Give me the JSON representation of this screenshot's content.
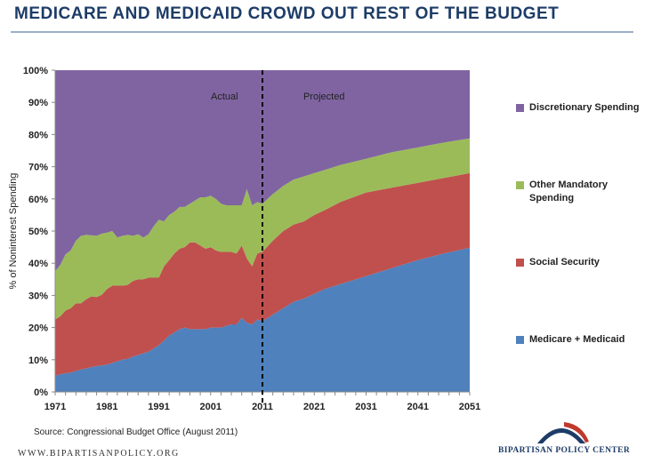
{
  "page": {
    "title": "MEDICARE AND MEDICAID CROWD OUT REST OF THE BUDGET",
    "source": "Source: Congressional Budget Office (August 2011)",
    "footer_url": "WWW.BIPARTISANPOLICY.ORG",
    "logo_text": "BIPARTISAN POLICY CENTER"
  },
  "colors": {
    "medicare": "#4f81bd",
    "social_security": "#c0504d",
    "other_mandatory": "#9bbb59",
    "discretionary": "#8064a2",
    "logo_blue": "#1d3c67",
    "logo_red": "#c0392b"
  },
  "chart_data": {
    "type": "area",
    "stacked": true,
    "title": "MEDICARE AND MEDICAID CROWD OUT REST OF THE BUDGET",
    "xlabel": "",
    "ylabel": "% of Noninterest Spending",
    "xlim": [
      1971,
      2051
    ],
    "ylim": [
      0,
      100
    ],
    "x_ticks": [
      "1971",
      "1981",
      "1991",
      "2001",
      "2011",
      "2021",
      "2031",
      "2041",
      "2051"
    ],
    "y_ticks": [
      "0%",
      "10%",
      "20%",
      "30%",
      "40%",
      "50%",
      "60%",
      "70%",
      "80%",
      "90%",
      "100%"
    ],
    "divider": {
      "x": 2011,
      "style": "dashed",
      "left_label": "Actual",
      "right_label": "Projected"
    },
    "legend_position": "right",
    "x": [
      1971,
      1972,
      1973,
      1974,
      1975,
      1976,
      1977,
      1978,
      1979,
      1980,
      1981,
      1982,
      1983,
      1984,
      1985,
      1986,
      1987,
      1988,
      1989,
      1990,
      1991,
      1992,
      1993,
      1994,
      1995,
      1996,
      1997,
      1998,
      1999,
      2000,
      2001,
      2002,
      2003,
      2004,
      2005,
      2006,
      2007,
      2008,
      2009,
      2010,
      2011,
      2013,
      2015,
      2017,
      2019,
      2021,
      2023,
      2026,
      2031,
      2036,
      2041,
      2046,
      2051
    ],
    "series": [
      {
        "name": "Medicare + Medicaid",
        "values": [
          5,
          5.5,
          5.8,
          6,
          6.5,
          7,
          7.3,
          7.7,
          8,
          8.2,
          8.5,
          9,
          9.5,
          10,
          10.3,
          11,
          11.5,
          12,
          12.5,
          13.5,
          14.5,
          16,
          17.5,
          18.5,
          19.5,
          20,
          19.5,
          19.5,
          19.5,
          19.5,
          20,
          20,
          20,
          20.5,
          21,
          21,
          23,
          21.5,
          21,
          22.5,
          22,
          24,
          26,
          28,
          29,
          30.5,
          32,
          33.5,
          36,
          38.5,
          41,
          43,
          44.8
        ]
      },
      {
        "name": "Social Security",
        "values": [
          17.5,
          18,
          19.5,
          20,
          21,
          20.5,
          21.5,
          22,
          21.5,
          22,
          23.5,
          24,
          23.5,
          23,
          23,
          23.5,
          23.5,
          23,
          23,
          22,
          21,
          23,
          23.5,
          24.5,
          25,
          25,
          27,
          27,
          26,
          25,
          25,
          24,
          23.5,
          23,
          22.5,
          22,
          22.5,
          20,
          18,
          20.5,
          21.5,
          23,
          24,
          24,
          24,
          24.5,
          24.5,
          25.5,
          26,
          25,
          24,
          23.5,
          23.2
        ]
      },
      {
        "name": "Other Mandatory Spending",
        "values": [
          15,
          16,
          17.5,
          18,
          19.5,
          21,
          20,
          19,
          19,
          19,
          17.5,
          17,
          15,
          15.5,
          15.5,
          14,
          14,
          13,
          13.5,
          16,
          18,
          14,
          14,
          13,
          13,
          12.5,
          12,
          13,
          15,
          16,
          16,
          16,
          15,
          14.5,
          14.5,
          15,
          12.5,
          21.5,
          19,
          16,
          15,
          14.5,
          14,
          14,
          14,
          13,
          12.5,
          11.5,
          10.5,
          11,
          11,
          11,
          10.8
        ]
      },
      {
        "name": "Discretionary Spending",
        "values": [
          62.5,
          60.5,
          57.2,
          56,
          53,
          51.5,
          51.2,
          51.3,
          51.5,
          50.8,
          50.5,
          50,
          52,
          51.5,
          51.2,
          51.5,
          51,
          52,
          51,
          48.5,
          46.5,
          47,
          45,
          44,
          42.5,
          42.5,
          41.5,
          40.5,
          39.5,
          39.5,
          39,
          40,
          41.5,
          42,
          42,
          42,
          42,
          37,
          42,
          41,
          41.5,
          38.5,
          36,
          34,
          33,
          32,
          31,
          29.5,
          27.5,
          25.5,
          24,
          22.5,
          21.2
        ]
      }
    ],
    "legend": [
      "Discretionary Spending",
      "Other Mandatory Spending",
      "Social Security",
      "Medicare + Medicaid"
    ]
  }
}
